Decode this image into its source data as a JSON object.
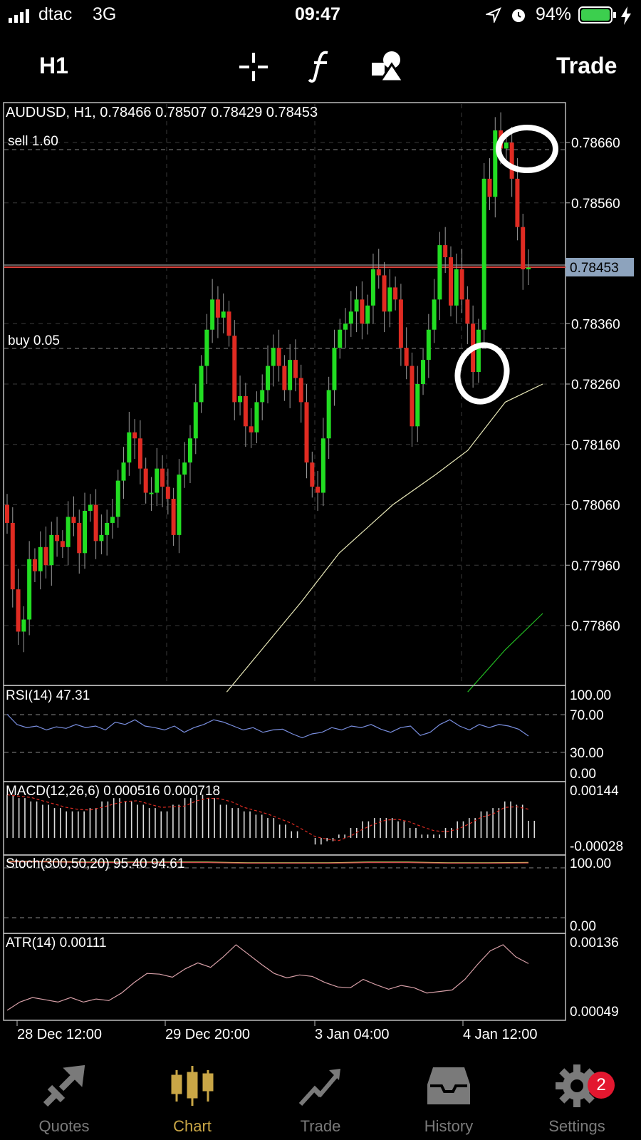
{
  "status_bar": {
    "carrier": "dtac",
    "network": "3G",
    "time": "09:47",
    "battery": "94%",
    "icons": [
      "signal-icon",
      "location-arrow-icon",
      "alarm-icon",
      "battery-icon",
      "charging-bolt-icon"
    ]
  },
  "toolbar": {
    "timeframe": "H1",
    "crosshair_icon": "crosshair-icon",
    "indicators_icon": "function-icon",
    "objects_icon": "shapes-icon",
    "trade_label": "Trade"
  },
  "chart": {
    "header": "AUDUSD, H1, 0.78466 0.78507 0.78429 0.78453",
    "sell_label": "sell 1.60",
    "buy_label": "buy 0.05",
    "current_price_label": "0.78453",
    "price_ticks": [
      "0.78660",
      "0.78560",
      "0.78360",
      "0.78260",
      "0.78160",
      "0.78060",
      "0.77960",
      "0.77860"
    ],
    "time_labels": [
      "28 Dec 12:00",
      "29 Dec 20:00",
      "3 Jan 04:00",
      "4 Jan 12:00"
    ],
    "colors": {
      "bull": "#22dd22",
      "bear": "#e02b22",
      "bid": "#d9413a",
      "ma_slow": "#e8e8b8",
      "ma_fast": "#22bb22",
      "rsi": "#7a8fe0",
      "atr": "#d8a0a8",
      "macd_signal": "#e02b22"
    }
  },
  "rsi": {
    "label": "RSI(14) 47.31",
    "ticks": [
      "100.00",
      "70.00",
      "30.00",
      "0.00"
    ]
  },
  "macd": {
    "label": "MACD(12,26,6) 0.000516 0.000718",
    "ticks": [
      "0.00144",
      "-0.00028"
    ]
  },
  "stoch": {
    "label": "Stoch(300,50,20) 95.40 94.61",
    "ticks": [
      "100.00",
      "0.00"
    ]
  },
  "atr": {
    "label": "ATR(14) 0.00111",
    "ticks": [
      "0.00136",
      "0.00049"
    ]
  },
  "chart_data": {
    "type": "line",
    "symbol": "AUDUSD",
    "timeframe": "H1",
    "last_ohlc": {
      "open": 0.78466,
      "high": 0.78507,
      "low": 0.78429,
      "close": 0.78453
    },
    "ylim": [
      0.7775,
      0.7877
    ],
    "closes": [
      0.7803,
      0.7792,
      0.7785,
      0.7787,
      0.7797,
      0.7795,
      0.7799,
      0.7796,
      0.7801,
      0.78,
      0.7799,
      0.7804,
      0.7803,
      0.7798,
      0.7805,
      0.7806,
      0.78,
      0.7801,
      0.7803,
      0.7804,
      0.781,
      0.7813,
      0.7818,
      0.7817,
      0.7812,
      0.7808,
      0.7808,
      0.7812,
      0.7809,
      0.7807,
      0.7801,
      0.7811,
      0.7813,
      0.7817,
      0.7823,
      0.7829,
      0.7835,
      0.784,
      0.7837,
      0.7838,
      0.7834,
      0.7823,
      0.7824,
      0.7819,
      0.7818,
      0.7823,
      0.7825,
      0.7829,
      0.7832,
      0.7829,
      0.7825,
      0.783,
      0.7827,
      0.7823,
      0.7813,
      0.7809,
      0.7808,
      0.7817,
      0.7825,
      0.7832,
      0.7835,
      0.7836,
      0.7838,
      0.784,
      0.7836,
      0.7839,
      0.7845,
      0.7844,
      0.7838,
      0.7842,
      0.784,
      0.7832,
      0.7829,
      0.7819,
      0.7826,
      0.783,
      0.7835,
      0.784,
      0.7849,
      0.7847,
      0.7839,
      0.7845,
      0.784,
      0.7836,
      0.7828,
      0.7835,
      0.786,
      0.7857,
      0.7868,
      0.7865,
      0.7866,
      0.786,
      0.7852,
      0.7845,
      0.78453
    ],
    "ma_slow": [
      [
        0.41,
        0.7775
      ],
      [
        0.55,
        0.779
      ],
      [
        0.62,
        0.7798
      ],
      [
        0.72,
        0.7806
      ],
      [
        0.8,
        0.7811
      ],
      [
        0.86,
        0.7815
      ],
      [
        0.93,
        0.7823
      ],
      [
        1.0,
        0.7826
      ]
    ],
    "ma_fast": [
      [
        0.86,
        0.7775
      ],
      [
        0.93,
        0.7782
      ],
      [
        1.0,
        0.7788
      ]
    ],
    "rsi": [
      75,
      62,
      58,
      60,
      55,
      59,
      57,
      62,
      58,
      60,
      55,
      65,
      62,
      68,
      60,
      58,
      55,
      60,
      52,
      58,
      62,
      68,
      65,
      60,
      55,
      58,
      52,
      55,
      56,
      50,
      45,
      50,
      52,
      58,
      55,
      60,
      58,
      62,
      56,
      52,
      58,
      60,
      48,
      52,
      62,
      68,
      60,
      55,
      62,
      58,
      62,
      60,
      56,
      47.31
    ],
    "macd": [
      0.0013,
      0.0012,
      0.0011,
      0.001,
      0.0009,
      0.0008,
      0.0008,
      0.0009,
      0.0011,
      0.0012,
      0.0011,
      0.001,
      0.0009,
      0.0008,
      0.001,
      0.0012,
      0.0013,
      0.0012,
      0.001,
      0.0009,
      0.0008,
      0.0007,
      0.0006,
      0.0004,
      0.0002,
      0.0,
      -0.0002,
      -0.0001,
      0.0001,
      0.0003,
      0.0005,
      0.0006,
      0.0006,
      0.0005,
      0.0003,
      0.0001,
      0.0001,
      0.0003,
      0.0005,
      0.0006,
      0.0008,
      0.0009,
      0.0011,
      0.001,
      0.000516
    ],
    "stoch": [
      97,
      97,
      96,
      96,
      96,
      96,
      95,
      95,
      95,
      96,
      96,
      95,
      95,
      95.4
    ],
    "atr": [
      0.00049,
      0.0006,
      0.00066,
      0.00063,
      0.0006,
      0.00066,
      0.0006,
      0.00064,
      0.00062,
      0.00072,
      0.00086,
      0.00098,
      0.00097,
      0.00093,
      0.00104,
      0.00112,
      0.00106,
      0.0012,
      0.00136,
      0.00123,
      0.0011,
      0.00098,
      0.00092,
      0.00096,
      0.00094,
      0.00086,
      0.0008,
      0.00079,
      0.0009,
      0.00083,
      0.00077,
      0.00082,
      0.00079,
      0.00072,
      0.00074,
      0.00076,
      0.0009,
      0.0011,
      0.00128,
      0.00136,
      0.0012,
      0.00111
    ]
  },
  "tabs": [
    {
      "label": "Quotes",
      "icon": "quotes-arrows-icon"
    },
    {
      "label": "Chart",
      "icon": "candlestick-chart-icon"
    },
    {
      "label": "Trade",
      "icon": "trade-trend-icon"
    },
    {
      "label": "History",
      "icon": "history-inbox-icon"
    },
    {
      "label": "Settings",
      "icon": "gear-icon"
    }
  ],
  "settings_badge": "2"
}
